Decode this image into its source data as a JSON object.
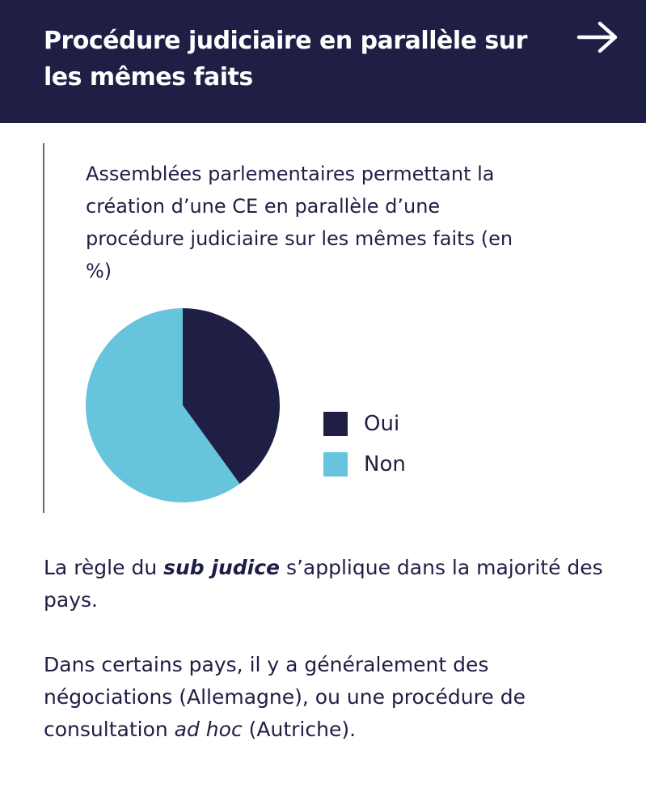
{
  "header": {
    "title": "Procédure judiciaire en parallèle sur les mêmes faits",
    "next_icon": "arrow-right-icon"
  },
  "chart_data": {
    "type": "pie",
    "title": "Assemblées parlementaires permettant la création d’une CE en parallèle d’une procédure judiciaire sur les mêmes faits (en %)",
    "categories": [
      "Oui",
      "Non"
    ],
    "values": [
      40,
      60
    ],
    "colors": [
      "#1f1f45",
      "#66c4dc"
    ],
    "legend": "right"
  },
  "paragraphs": {
    "p1": {
      "before": "La règle du ",
      "emphasis": "sub judice",
      "after": " s’applique dans la majorité des pays."
    },
    "p2": {
      "before": "Dans certains pays, il y a généralement des négociations (Allemagne), ou une procédure de consultation ",
      "emphasis": "ad hoc",
      "after": " (Autriche)."
    }
  }
}
